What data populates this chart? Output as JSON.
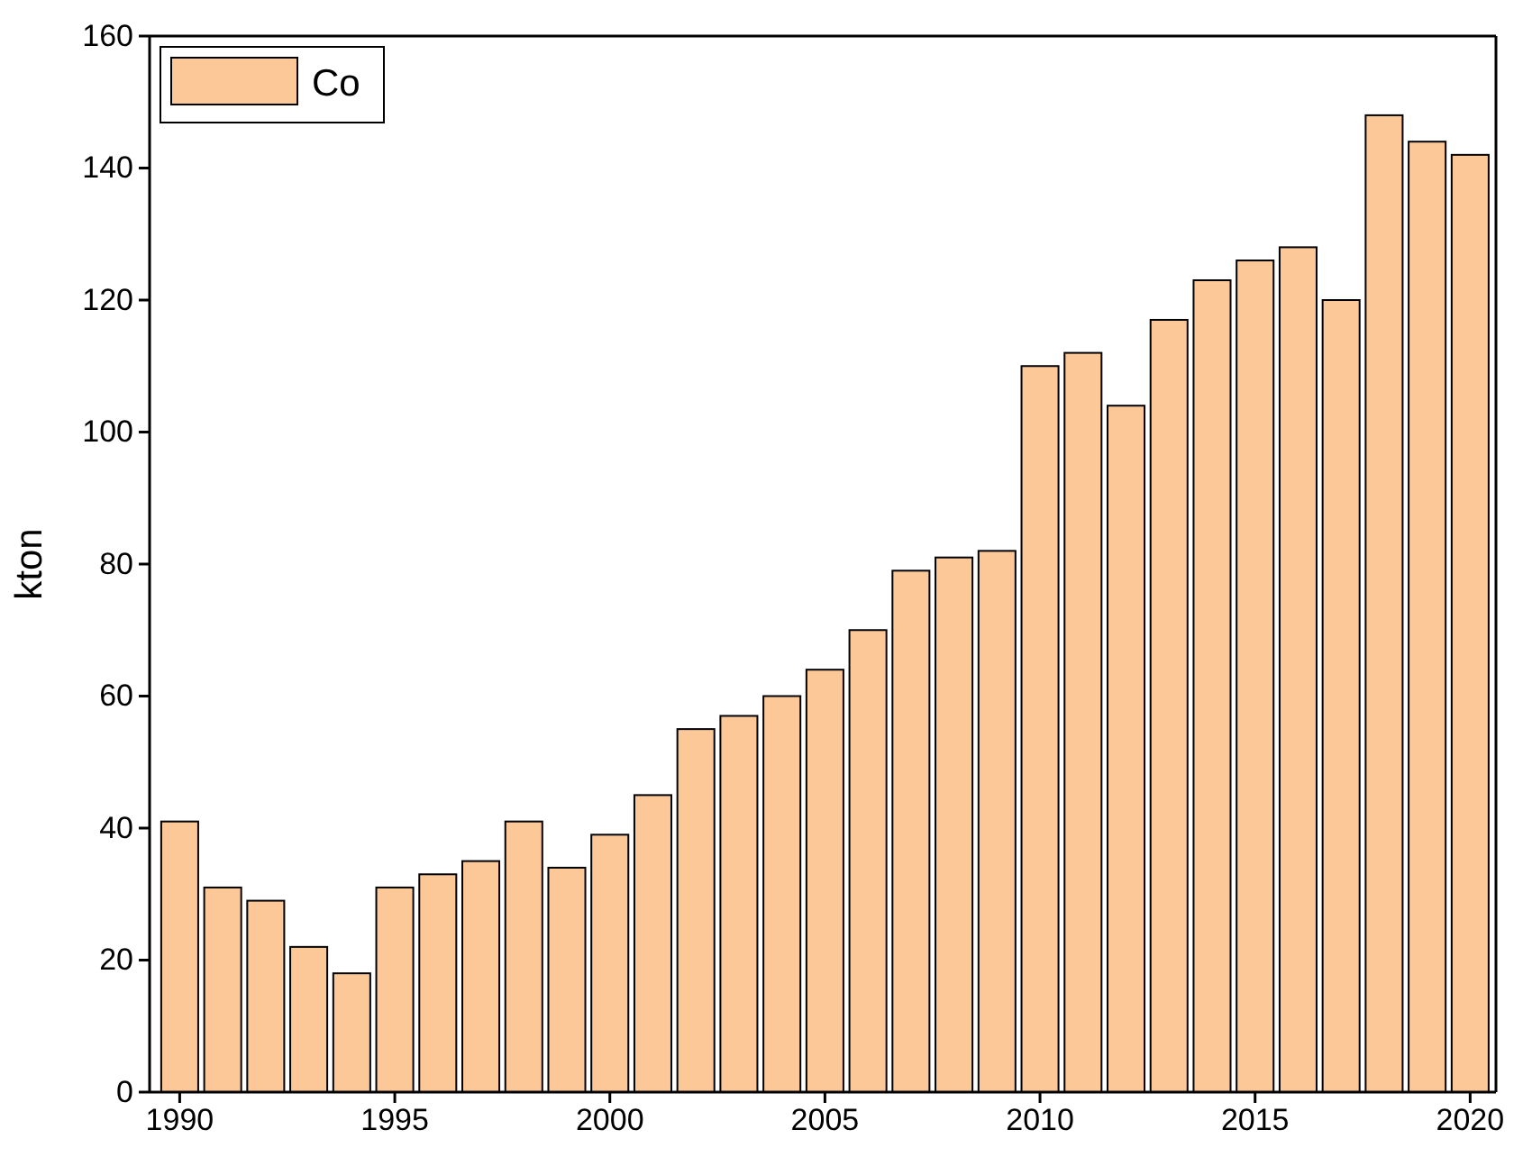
{
  "chart_data": {
    "type": "bar",
    "ylabel": "kton",
    "x": [
      1990,
      1991,
      1992,
      1993,
      1994,
      1995,
      1996,
      1997,
      1998,
      1999,
      2000,
      2001,
      2002,
      2003,
      2004,
      2005,
      2006,
      2007,
      2008,
      2009,
      2010,
      2011,
      2012,
      2013,
      2014,
      2015,
      2016,
      2017,
      2018,
      2019,
      2020
    ],
    "series": [
      {
        "name": "Co",
        "color": "#fcc897",
        "values": [
          41,
          31,
          29,
          22,
          18,
          31,
          33,
          35,
          41,
          34,
          39,
          45,
          55,
          57,
          60,
          64,
          70,
          79,
          81,
          82,
          110,
          112,
          104,
          117,
          123,
          126,
          128,
          120,
          148,
          144,
          142
        ]
      }
    ],
    "xlim": [
      1989.3,
      2020.6
    ],
    "xticks": [
      1990,
      1995,
      2000,
      2005,
      2010,
      2015,
      2020
    ],
    "ylim": [
      0,
      160
    ],
    "yticks": [
      0,
      20,
      40,
      60,
      80,
      100,
      120,
      140,
      160
    ],
    "grid": false,
    "legend": "top left"
  }
}
